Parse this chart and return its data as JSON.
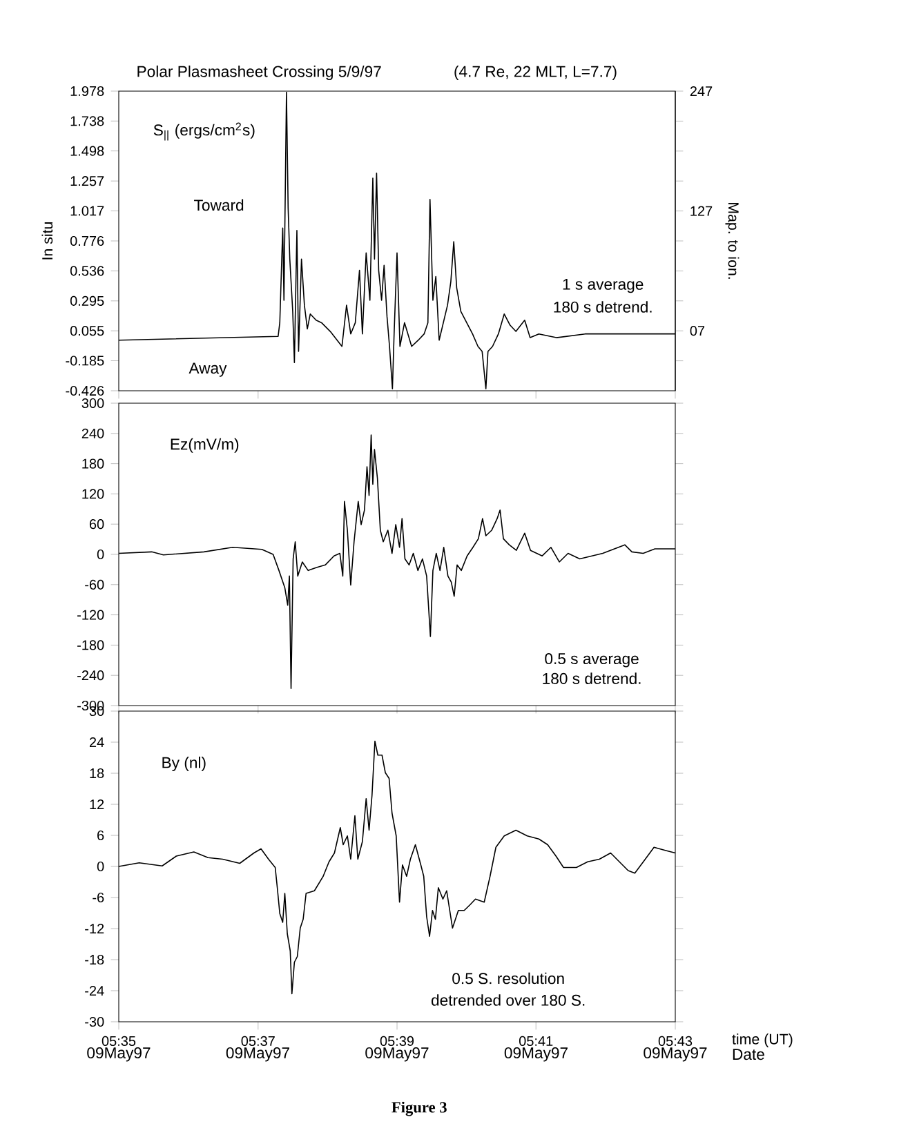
{
  "chart_data": [
    {
      "type": "line",
      "title": "Polar Plasmasheet Crossing 5/9/97",
      "subtitle": "(4.7 Re, 22 MLT, L=7.7)",
      "ylabel": "In situ",
      "y2label": "Map. to ion.",
      "annotations": [
        "S$_{||}$ (ergs/cm$^{2}$s)",
        "Toward",
        "Away",
        "1 s average",
        "180 s detrend."
      ],
      "xlim": [
        5.5833,
        5.7167
      ],
      "ylim": [
        -0.426,
        1.978
      ],
      "yticks": [
        -0.426,
        -0.185,
        0.055,
        0.295,
        0.536,
        0.776,
        1.017,
        1.257,
        1.498,
        1.738,
        1.978
      ],
      "y2lim": [
        -53,
        247
      ],
      "y2ticks": [
        {
          "value": -23,
          "label": null
        },
        {
          "value": 7,
          "label": "07"
        },
        {
          "value": 37,
          "label": null
        },
        {
          "value": 67,
          "label": null
        },
        {
          "value": 97,
          "label": null
        },
        127,
        {
          "value": 157,
          "label": null
        },
        {
          "value": 187,
          "label": null
        },
        {
          "value": 217,
          "label": null
        },
        247
      ],
      "tick_labels": "y",
      "x": [
        5.5833,
        5.6215,
        5.6219,
        5.6226,
        5.6229,
        5.6235,
        5.6239,
        5.6243,
        5.625,
        5.6254,
        5.626,
        5.6264,
        5.6271,
        5.6278,
        5.6285,
        5.6292,
        5.6306,
        5.6319,
        5.634,
        5.6368,
        5.6379,
        5.6389,
        5.64,
        5.641,
        5.6417,
        5.6426,
        5.6435,
        5.6442,
        5.6446,
        5.6451,
        5.6456,
        5.6463,
        5.6469,
        5.6476,
        5.6482,
        5.6489,
        5.6493,
        5.65,
        5.6507,
        5.6518,
        5.6535,
        5.6551,
        5.6565,
        5.6574,
        5.6579,
        5.6586,
        5.6593,
        5.6601,
        5.6611,
        5.6621,
        5.6629,
        5.6636,
        5.6643,
        5.6653,
        5.6667,
        5.6681,
        5.6694,
        5.6704,
        5.6713,
        5.6718,
        5.6729,
        5.6743,
        5.6757,
        5.6771,
        5.6785,
        5.6806,
        5.6819,
        5.684,
        5.6882,
        5.6951,
        5.709,
        5.7167
      ],
      "series": [
        {
          "color": "#000000",
          "values": [
            -0.02,
            0.01,
            0.12,
            0.88,
            0.3,
            1.97,
            1.04,
            0.63,
            0.21,
            -0.2,
            0.86,
            -0.11,
            0.63,
            0.26,
            0.07,
            0.19,
            0.14,
            0.12,
            0.05,
            -0.07,
            0.26,
            0.03,
            0.12,
            0.54,
            0.03,
            0.68,
            0.3,
            1.28,
            0.63,
            1.32,
            0.54,
            0.3,
            0.58,
            0.17,
            -0.07,
            -0.41,
            0.03,
            0.68,
            -0.07,
            0.12,
            -0.07,
            -0.02,
            0.03,
            0.12,
            1.11,
            0.3,
            0.49,
            -0.02,
            0.12,
            0.26,
            0.45,
            0.77,
            0.4,
            0.21,
            0.12,
            0.03,
            -0.07,
            -0.11,
            -0.41,
            -0.11,
            -0.07,
            0.03,
            0.19,
            0.1,
            0.05,
            0.14,
            0.0,
            0.03,
            0.0,
            0.03,
            0.03,
            0.03
          ]
        }
      ]
    },
    {
      "type": "line",
      "annotations": [
        "Ez(mV/m)",
        "0.5 s average",
        "180 s detrend."
      ],
      "xlim": [
        5.5833,
        5.7167
      ],
      "ylim": [
        -300,
        300
      ],
      "yticks": [
        -300,
        -240,
        -180,
        -120,
        -60,
        0,
        60,
        120,
        180,
        240,
        300
      ],
      "tick_labels": "y",
      "x": [
        5.5833,
        5.5912,
        5.594,
        5.6037,
        5.6106,
        5.6176,
        5.6203,
        5.6217,
        5.6231,
        5.6238,
        5.6242,
        5.6246,
        5.6251,
        5.6256,
        5.6262,
        5.6273,
        5.6287,
        5.6307,
        5.6328,
        5.6349,
        5.6363,
        5.637,
        5.6374,
        5.6381,
        5.6389,
        5.6397,
        5.6407,
        5.6414,
        5.6422,
        5.6428,
        5.6433,
        5.6438,
        5.6442,
        5.6446,
        5.6453,
        5.646,
        5.6467,
        5.6478,
        5.6488,
        5.6497,
        5.6506,
        5.6512,
        5.6519,
        5.6529,
        5.6539,
        5.655,
        5.6561,
        5.6571,
        5.658,
        5.6586,
        5.6594,
        5.6603,
        5.6612,
        5.6622,
        5.663,
        5.6637,
        5.6644,
        5.6654,
        5.6668,
        5.6682,
        5.6695,
        5.6705,
        5.6713,
        5.6727,
        5.674,
        5.6747,
        5.6755,
        5.6769,
        5.6786,
        5.6806,
        5.682,
        5.6848,
        5.6869,
        5.6889,
        5.691,
        5.6938,
        5.6993,
        5.7046,
        5.7063,
        5.709,
        5.7118,
        5.7167
      ],
      "series": [
        {
          "color": "#000000",
          "values": [
            2,
            5,
            -1,
            5,
            14,
            10,
            0,
            -32,
            -66,
            -101,
            -43,
            -266,
            -9,
            25,
            -43,
            -15,
            -32,
            -26,
            -21,
            -3,
            2,
            -43,
            105,
            48,
            -61,
            25,
            105,
            59,
            88,
            174,
            117,
            237,
            139,
            208,
            151,
            48,
            25,
            48,
            2,
            59,
            14,
            71,
            -9,
            -21,
            2,
            -32,
            -9,
            -43,
            -163,
            -32,
            2,
            -32,
            14,
            -43,
            -55,
            -83,
            -21,
            -32,
            -3,
            14,
            31,
            71,
            37,
            48,
            71,
            88,
            31,
            19,
            8,
            42,
            8,
            -3,
            14,
            -15,
            2,
            -9,
            2,
            19,
            5,
            2,
            11,
            11
          ]
        }
      ]
    },
    {
      "type": "line",
      "xlabel": "time (UT)",
      "annotations": [
        "By (nl)",
        "0.5 S. resolution",
        "detrended over 180 S.",
        "09May97",
        "09May97",
        "09May97",
        "09May97",
        "09May97",
        "Date",
        "Figure 3"
      ],
      "xlim": [
        5.5833,
        5.7167
      ],
      "xticks": [
        {
          "value": 5.5833,
          "label": "05:35"
        },
        {
          "value": 5.6167,
          "label": "05:37"
        },
        {
          "value": 5.65,
          "label": "05:39"
        },
        {
          "value": 5.6833,
          "label": "05:41"
        },
        {
          "value": 5.7167,
          "label": "05:43"
        }
      ],
      "ylim": [
        -30,
        30
      ],
      "yticks": [
        -30,
        -24,
        -18,
        -12,
        -6,
        0,
        6,
        12,
        18,
        24,
        30
      ],
      "x": [
        5.5833,
        5.5882,
        5.5937,
        5.5971,
        5.6013,
        5.6047,
        5.6082,
        5.6123,
        5.6157,
        5.6174,
        5.6192,
        5.6208,
        5.6213,
        5.6219,
        5.6226,
        5.6231,
        5.6237,
        5.6244,
        5.6248,
        5.6254,
        5.6261,
        5.6268,
        5.6275,
        5.6282,
        5.6302,
        5.6323,
        5.6337,
        5.635,
        5.6364,
        5.6371,
        5.6381,
        5.6389,
        5.6399,
        5.6406,
        5.6417,
        5.6426,
        5.6433,
        5.644,
        5.6447,
        5.6454,
        5.6464,
        5.6472,
        5.6481,
        5.6488,
        5.6498,
        5.6506,
        5.6513,
        5.6523,
        5.6532,
        5.6544,
        5.6557,
        5.6564,
        5.6571,
        5.6578,
        5.6585,
        5.6592,
        5.6599,
        5.661,
        5.6619,
        5.6633,
        5.6647,
        5.6661,
        5.6675,
        5.6688,
        5.6709,
        5.6723,
        5.6737,
        5.6757,
        5.6785,
        5.6812,
        5.684,
        5.6861,
        5.6881,
        5.6899,
        5.693,
        5.6957,
        5.6985,
        5.7012,
        5.7033,
        5.7054,
        5.707,
        5.7095,
        5.7116,
        5.7143,
        5.7167
      ],
      "series": [
        {
          "color": "#000000",
          "values": [
            0,
            0.7,
            0.1,
            2.0,
            2.8,
            1.7,
            1.4,
            0.6,
            2.6,
            3.4,
            1.4,
            -0.2,
            -4.1,
            -9.1,
            -10.8,
            -5.2,
            -13.0,
            -16.3,
            -24.6,
            -18.5,
            -17.4,
            -11.9,
            -10.2,
            -5.2,
            -4.7,
            -1.9,
            0.9,
            2.6,
            7.5,
            4.2,
            5.9,
            1.4,
            9.8,
            1.4,
            4.8,
            13.1,
            7.0,
            13.7,
            24.2,
            21.5,
            21.5,
            18.1,
            17.0,
            10.3,
            5.9,
            -6.9,
            0.3,
            -1.9,
            1.4,
            4.2,
            0.3,
            -1.9,
            -9.7,
            -13.5,
            -8.5,
            -10.2,
            -4.1,
            -6.3,
            -4.7,
            -11.9,
            -8.5,
            -8.5,
            -7.4,
            -6.3,
            -6.9,
            -1.9,
            3.7,
            5.9,
            7.0,
            5.9,
            5.3,
            4.2,
            2.0,
            -0.2,
            -0.2,
            0.9,
            1.4,
            2.6,
            0.9,
            -0.8,
            -1.3,
            1.4,
            3.7,
            3.1,
            2.6
          ]
        }
      ]
    }
  ]
}
